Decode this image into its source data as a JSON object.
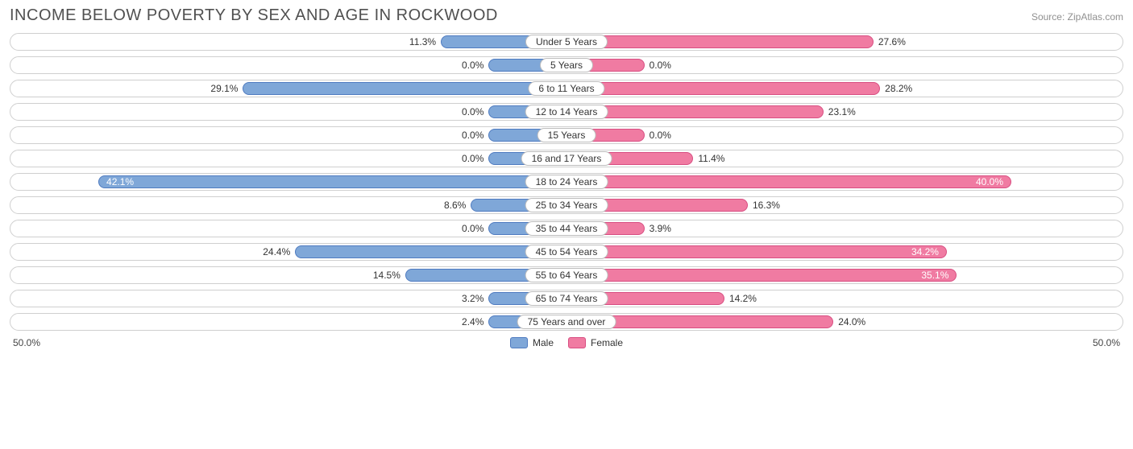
{
  "title": "INCOME BELOW POVERTY BY SEX AND AGE IN ROCKWOOD",
  "source": "Source: ZipAtlas.com",
  "chart": {
    "type": "diverging-bar",
    "axis_max": 50.0,
    "axis_label_left": "50.0%",
    "axis_label_right": "50.0%",
    "min_bar_pct": 7.0,
    "male": {
      "fill": "#7fa7d8",
      "border": "#4f7bc0",
      "legend": "Male"
    },
    "female": {
      "fill": "#f07ba2",
      "border": "#d84e82",
      "legend": "Female"
    },
    "track_border": "#cfcfcf",
    "label_fontsize": 12,
    "title_fontsize": 20,
    "title_color": "#505050",
    "rows": [
      {
        "label": "Under 5 Years",
        "male": 11.3,
        "female": 27.6
      },
      {
        "label": "5 Years",
        "male": 0.0,
        "female": 0.0
      },
      {
        "label": "6 to 11 Years",
        "male": 29.1,
        "female": 28.2
      },
      {
        "label": "12 to 14 Years",
        "male": 0.0,
        "female": 23.1
      },
      {
        "label": "15 Years",
        "male": 0.0,
        "female": 0.0
      },
      {
        "label": "16 and 17 Years",
        "male": 0.0,
        "female": 11.4
      },
      {
        "label": "18 to 24 Years",
        "male": 42.1,
        "female": 40.0
      },
      {
        "label": "25 to 34 Years",
        "male": 8.6,
        "female": 16.3
      },
      {
        "label": "35 to 44 Years",
        "male": 0.0,
        "female": 3.9
      },
      {
        "label": "45 to 54 Years",
        "male": 24.4,
        "female": 34.2
      },
      {
        "label": "55 to 64 Years",
        "male": 14.5,
        "female": 35.1
      },
      {
        "label": "65 to 74 Years",
        "male": 3.2,
        "female": 14.2
      },
      {
        "label": "75 Years and over",
        "male": 2.4,
        "female": 24.0
      }
    ]
  }
}
